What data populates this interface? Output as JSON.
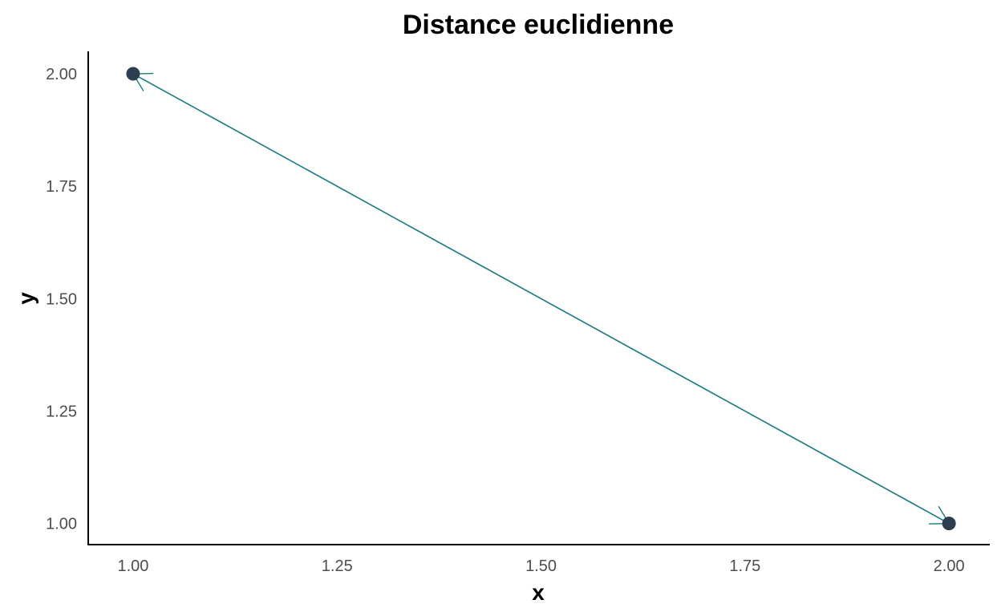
{
  "chart_data": {
    "type": "scatter",
    "title": "Distance euclidienne",
    "xlabel": "x",
    "ylabel": "y",
    "xlim": [
      0.945,
      2.05
    ],
    "ylim": [
      0.953,
      2.05
    ],
    "x_ticks": [
      "1.00",
      "1.25",
      "1.50",
      "1.75",
      "2.00"
    ],
    "y_ticks": [
      "1.00",
      "1.25",
      "1.50",
      "1.75",
      "2.00"
    ],
    "grid": false,
    "series": [
      {
        "points": [
          {
            "x": 1.0,
            "y": 2.0
          },
          {
            "x": 2.0,
            "y": 1.0
          }
        ]
      }
    ],
    "annotations": [
      {
        "type": "double-arrow",
        "from": {
          "x": 1.0,
          "y": 2.0
        },
        "to": {
          "x": 2.0,
          "y": 1.0
        }
      }
    ],
    "colors": {
      "point": "#2c3e50",
      "arrow": "#1a7a80",
      "tick_text": "#4d4d4d"
    }
  }
}
